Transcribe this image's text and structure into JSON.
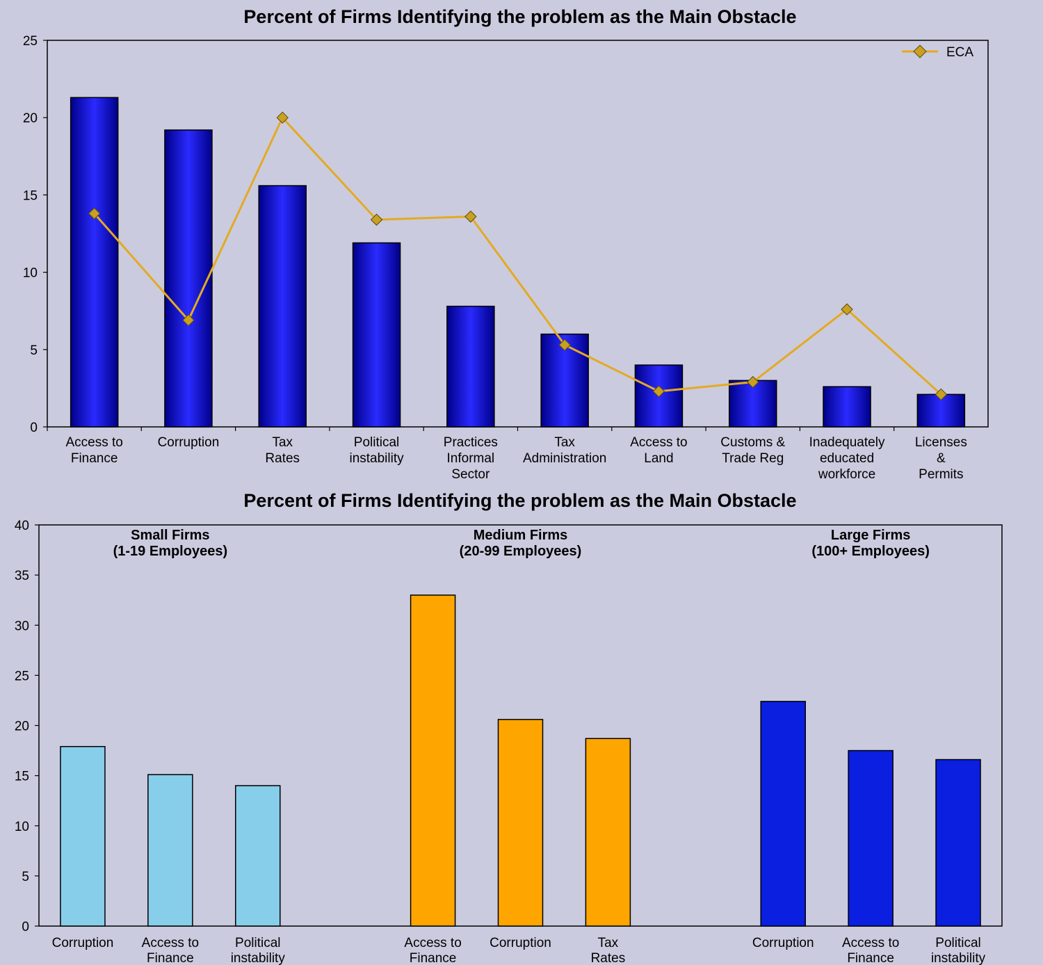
{
  "colors": {
    "background": "#cbcbdf",
    "bar_blue_light": "#2a2aff",
    "bar_blue_dark": "#00008a",
    "eca_line": "#e3aa22",
    "eca_marker": "#c9a020",
    "small_firms": "#87ceeb",
    "medium_firms": "#ffa500",
    "large_firms": "#0a1fe0"
  },
  "chart_data": [
    {
      "type": "bar",
      "title": "Percent of Firms Identifying the problem as the Main Obstacle",
      "categories": [
        [
          "Access to",
          "Finance"
        ],
        [
          "Corruption"
        ],
        [
          "Tax",
          "Rates"
        ],
        [
          "Political",
          "instability"
        ],
        [
          "Practices",
          "Informal",
          "Sector"
        ],
        [
          "Tax",
          "Administration"
        ],
        [
          "Access to",
          "Land"
        ],
        [
          "Customs &",
          "Trade Reg"
        ],
        [
          "Inadequately",
          "educated",
          "workforce"
        ],
        [
          "Licenses",
          "&",
          "Permits"
        ]
      ],
      "series": [
        {
          "kind": "bar",
          "values": [
            21.3,
            19.2,
            15.6,
            11.9,
            7.8,
            6.0,
            4.0,
            3.0,
            2.6,
            2.1
          ]
        },
        {
          "kind": "line",
          "name": "ECA",
          "values": [
            13.8,
            6.9,
            20.0,
            13.4,
            13.6,
            5.3,
            2.3,
            2.9,
            7.6,
            2.1
          ]
        }
      ],
      "ylim": [
        0,
        25
      ],
      "yticks": [
        0,
        5,
        10,
        15,
        20,
        25
      ],
      "legend": "top-right",
      "grid": false
    },
    {
      "type": "bar",
      "title": "Percent of Firms Identifying the problem as the Main Obstacle",
      "groups": [
        {
          "title": [
            "Small Firms",
            "(1-19 Employees)"
          ],
          "color_key": "small_firms",
          "categories": [
            [
              "Corruption"
            ],
            [
              "Access to",
              "Finance"
            ],
            [
              "Political",
              "instability"
            ]
          ],
          "values": [
            17.9,
            15.1,
            14.0
          ]
        },
        {
          "title": [
            "Medium Firms",
            "(20-99 Employees)"
          ],
          "color_key": "medium_firms",
          "categories": [
            [
              "Access to",
              "Finance"
            ],
            [
              "Corruption"
            ],
            [
              "Tax",
              "Rates"
            ]
          ],
          "values": [
            33.0,
            20.6,
            18.7
          ]
        },
        {
          "title": [
            "Large Firms",
            "(100+ Employees)"
          ],
          "color_key": "large_firms",
          "categories": [
            [
              "Corruption"
            ],
            [
              "Access to",
              "Finance"
            ],
            [
              "Political",
              "instability"
            ]
          ],
          "values": [
            22.4,
            17.5,
            16.6
          ]
        }
      ],
      "ylim": [
        0,
        40
      ],
      "yticks": [
        0,
        5,
        10,
        15,
        20,
        25,
        30,
        35,
        40
      ],
      "grid": false
    }
  ]
}
